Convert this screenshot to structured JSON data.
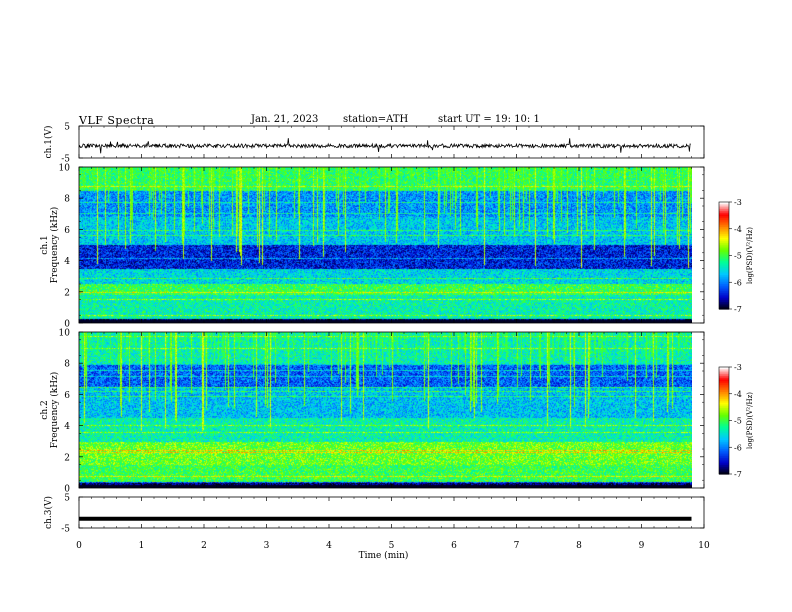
{
  "header": {
    "title": "VLF  Spectra",
    "date": "Jan. 21, 2023",
    "station": "station=ATH",
    "start": "start  UT  =    19: 10: 1"
  },
  "chart_data": [
    {
      "type": "line",
      "name": "ch1-waveform",
      "ylabel": "ch.1(V)",
      "yticks": [
        "5",
        "-5"
      ],
      "ylim": [
        -5,
        5
      ],
      "baseline": -1.2,
      "xlim": [
        0,
        10
      ]
    },
    {
      "type": "heatmap",
      "name": "ch1-spectrogram",
      "ylabel": "ch.1\nFrequency (kHz)",
      "ylabel_lines": [
        "ch.1",
        "Frequency (kHz)"
      ],
      "yticks": [
        "10",
        "8",
        "6",
        "4",
        "2",
        "0"
      ],
      "ylim": [
        0,
        10
      ],
      "xlim": [
        0,
        10
      ],
      "data_extent_min": 9.8,
      "colorbar": {
        "label": "log(PSD)(V²/Hz)",
        "ticks": [
          "-3",
          "-4",
          "-5",
          "-6",
          "-7"
        ],
        "range": [
          -7,
          -3
        ],
        "colors": [
          "#000000",
          "#0000c8",
          "#0060ff",
          "#00c8ff",
          "#00ff96",
          "#64ff00",
          "#ffff00",
          "#ff8000",
          "#ff0000",
          "#ffffff"
        ]
      }
    },
    {
      "type": "heatmap",
      "name": "ch2-spectrogram",
      "ylabel": "ch.2\nFrequency (kHz)",
      "ylabel_lines": [
        "ch.2",
        "Frequency (kHz)"
      ],
      "yticks": [
        "10",
        "8",
        "6",
        "4",
        "2",
        "0"
      ],
      "ylim": [
        0,
        10
      ],
      "xlim": [
        0,
        10
      ],
      "data_extent_min": 9.8,
      "colorbar": {
        "label": "log(PSD)(V²/Hz)",
        "ticks": [
          "-3",
          "-4",
          "-5",
          "-6",
          "-7"
        ],
        "range": [
          -7,
          -3
        ],
        "colors": [
          "#000000",
          "#0000c8",
          "#0060ff",
          "#00c8ff",
          "#00ff96",
          "#64ff00",
          "#ffff00",
          "#ff8000",
          "#ff0000",
          "#ffffff"
        ]
      }
    },
    {
      "type": "line",
      "name": "ch3-waveform",
      "ylabel": "ch.3(V)",
      "yticks": [
        "5",
        "-5"
      ],
      "ylim": [
        -5,
        5
      ],
      "baseline": -2.0,
      "xlim": [
        0,
        10
      ],
      "xlabel": "Time  (min)",
      "xticks": [
        "0",
        "1",
        "2",
        "3",
        "4",
        "5",
        "6",
        "7",
        "8",
        "9",
        "10"
      ]
    }
  ]
}
